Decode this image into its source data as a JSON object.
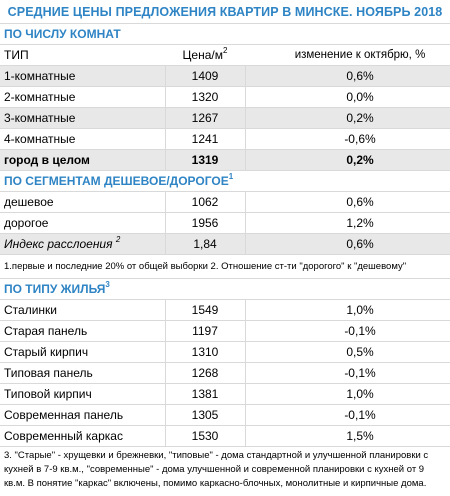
{
  "title": "СРЕДНИЕ ЦЕНЫ ПРЕДЛОЖЕНИЯ КВАРТИР В МИНСКЕ. НОЯБРЬ 2018",
  "section_rooms": {
    "heading": "ПО ЧИСЛУ КОМНАТ",
    "col_type": "ТИП",
    "col_price": "Цена/м",
    "col_price_sup": "2",
    "col_change": "изменение к октябрю, %",
    "rows": [
      {
        "label": "1-комнатные",
        "price": "1409",
        "change": "0,6%"
      },
      {
        "label": "2-комнатные",
        "price": "1320",
        "change": "0,0%"
      },
      {
        "label": "3-комнатные",
        "price": "1267",
        "change": "0,2%"
      },
      {
        "label": "4-комнатные",
        "price": "1241",
        "change": "-0,6%"
      }
    ],
    "total": {
      "label": "город в целом",
      "price": "1319",
      "change": "0,2%"
    }
  },
  "section_segments": {
    "heading": "ПО СЕГМЕНТАМ ДЕШЕВОЕ/ДОРОГОЕ",
    "heading_sup": "1",
    "rows": [
      {
        "label": "дешевое",
        "price": "1062",
        "change": "0,6%"
      },
      {
        "label": "дорогое",
        "price": "1956",
        "change": "1,2%"
      }
    ],
    "index": {
      "label": "Индекс расслоения",
      "label_sup": "2",
      "price": "1,84",
      "change": "0,6%"
    },
    "note": "1.первые и последние 20% от общей выборки 2. Отношение ст-ти \"дорогого\" к \"дешевому\""
  },
  "section_housing": {
    "heading": "ПО ТИПУ ЖИЛЬЯ",
    "heading_sup": "3",
    "rows": [
      {
        "label": "Сталинки",
        "price": "1549",
        "change": "1,0%"
      },
      {
        "label": "Старая панель",
        "price": "1197",
        "change": "-0,1%"
      },
      {
        "label": "Старый кирпич",
        "price": "1310",
        "change": "0,5%"
      },
      {
        "label": "Типовая панель",
        "price": "1268",
        "change": "-0,1%"
      },
      {
        "label": "Типовой кирпич",
        "price": "1381",
        "change": "1,0%"
      },
      {
        "label": "Современная панель",
        "price": "1305",
        "change": "-0,1%"
      },
      {
        "label": "Современный каркас",
        "price": "1530",
        "change": "1,5%"
      }
    ],
    "note": "3. \"Старые\" - хрущевки и брежневки, \"типовые\" - дома стандартной и улучшенной планировки с кухней в 7-9 кв.м., \"современные\" - дома улучшенной и современной планировки с кухней от 9 кв.м. В понятие \"каркас\" включены, помимо каркасно-блочных, монолитные и кирпичные дома."
  },
  "colors": {
    "accent": "#2e84c4",
    "tint": "#e8e8e8",
    "grid": "#d9d9d9"
  }
}
